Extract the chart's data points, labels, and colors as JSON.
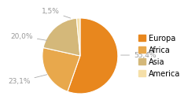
{
  "labels": [
    "Europa",
    "Africa",
    "Asia",
    "America"
  ],
  "values": [
    55.4,
    23.1,
    20.0,
    1.5
  ],
  "colors": [
    "#e8871e",
    "#e8a84c",
    "#d4b87a",
    "#f5dfa8"
  ],
  "pct_labels": [
    "55,4%",
    "23,1%",
    "20,0%",
    "1,5%"
  ],
  "background_color": "#ffffff",
  "legend_fontsize": 7.0,
  "pct_fontsize": 6.5,
  "startangle": 90
}
